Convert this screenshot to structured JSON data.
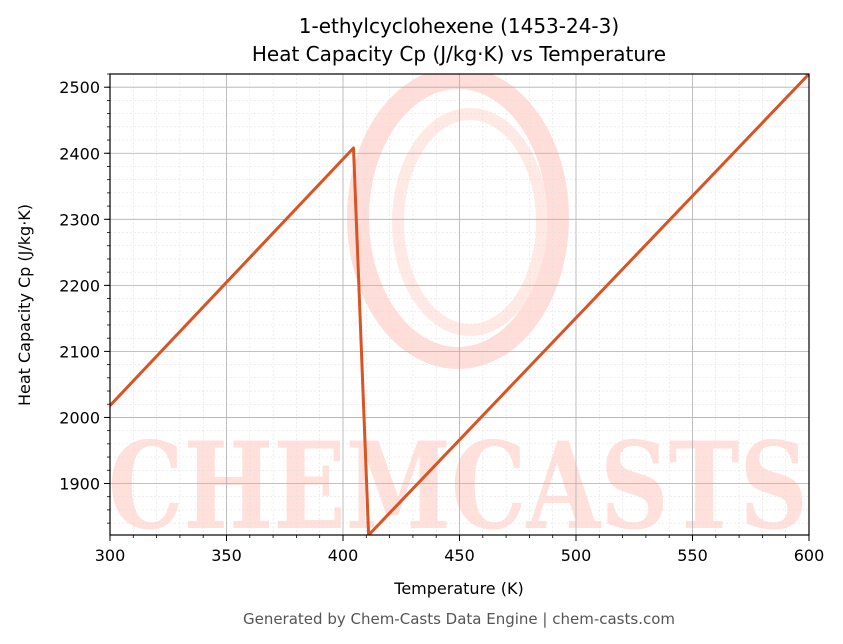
{
  "chart_data": {
    "type": "line",
    "title": "1-ethylcyclohexene (1453-24-3)",
    "subtitle": "Heat Capacity Cp (J/kg·K) vs Temperature",
    "xlabel": "Temperature (K)",
    "ylabel": "Heat Capacity Cp (J/kg·K)",
    "xlim": [
      300,
      600
    ],
    "ylim": [
      1822,
      2520
    ],
    "xticks": [
      300,
      350,
      400,
      450,
      500,
      550,
      600
    ],
    "yticks": [
      1900,
      2000,
      2100,
      2200,
      2300,
      2400,
      2500
    ],
    "grid": true,
    "line_color": "#d95323",
    "series": [
      {
        "x": [
          300,
          404.5,
          411,
          600
        ],
        "y": [
          2018,
          2408,
          1822,
          2520
        ]
      }
    ]
  },
  "watermark": {
    "text": "CHEMCASTS",
    "color": "#ffd6cf"
  },
  "footer": "Generated by Chem-Casts Data Engine | chem-casts.com"
}
